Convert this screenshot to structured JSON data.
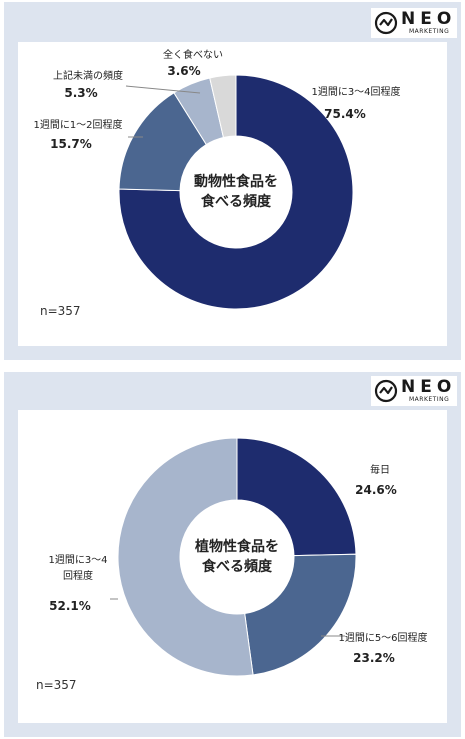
{
  "logo": {
    "name": "NEO",
    "sub": "MARKETING"
  },
  "chart_data": [
    {
      "type": "pie",
      "variant": "donut",
      "center_label": [
        "動物性食品を",
        "食べる頻度"
      ],
      "n_label": "n=357",
      "slices": [
        {
          "label": "1週間に3～4回程度",
          "value": 75.4,
          "value_label": "75.4%",
          "color": "#1e2c6e"
        },
        {
          "label": "1週間に1～2回程度",
          "value": 15.7,
          "value_label": "15.7%",
          "color": "#4b6690"
        },
        {
          "label": "上記未満の頻度",
          "value": 5.3,
          "value_label": "5.3%",
          "color": "#a7b5cc"
        },
        {
          "label": "全く食べない",
          "value": 3.6,
          "value_label": "3.6%",
          "color": "#d9d9d9"
        }
      ]
    },
    {
      "type": "pie",
      "variant": "donut",
      "center_label": [
        "植物性食品を",
        "食べる頻度"
      ],
      "n_label": "n=357",
      "slices": [
        {
          "label": "毎日",
          "value": 24.6,
          "value_label": "24.6%",
          "color": "#1e2c6e"
        },
        {
          "label": "1週間に5～6回程度",
          "value": 23.2,
          "value_label": "23.2%",
          "color": "#4b6690"
        },
        {
          "label": "1週間に3～4回程度",
          "value": 52.1,
          "value_label": "52.1%",
          "color": "#a7b5cc"
        }
      ]
    }
  ]
}
